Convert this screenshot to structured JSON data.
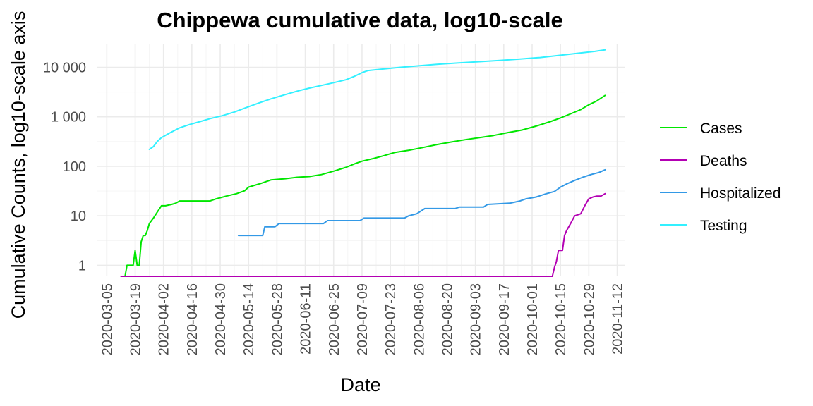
{
  "chart_data": {
    "type": "line",
    "title": "Chippewa cumulative data, log10-scale",
    "xlabel": "Date",
    "ylabel": "Cumulative Counts, log10-scale axis",
    "y_scale": "log10",
    "xlim": [
      "2020-02-29",
      "2020-11-16"
    ],
    "ylim": [
      0.6,
      30000
    ],
    "x_ticks": [
      "2020-03-05",
      "2020-03-19",
      "2020-04-02",
      "2020-04-16",
      "2020-04-30",
      "2020-05-14",
      "2020-05-28",
      "2020-06-11",
      "2020-06-25",
      "2020-07-09",
      "2020-07-23",
      "2020-08-06",
      "2020-08-20",
      "2020-09-03",
      "2020-09-17",
      "2020-10-01",
      "2020-10-15",
      "2020-10-29",
      "2020-11-12"
    ],
    "y_ticks": [
      {
        "value": 1,
        "label": "1"
      },
      {
        "value": 10,
        "label": "10"
      },
      {
        "value": 100,
        "label": "100"
      },
      {
        "value": 1000,
        "label": "1 000"
      },
      {
        "value": 10000,
        "label": "10 000"
      }
    ],
    "grid": true,
    "legend_position": "right",
    "series": [
      {
        "name": "Cases",
        "color": "#00e600",
        "points": [
          [
            "2020-03-14",
            0.6
          ],
          [
            "2020-03-15",
            1
          ],
          [
            "2020-03-17",
            1
          ],
          [
            "2020-03-18",
            1
          ],
          [
            "2020-03-19",
            2
          ],
          [
            "2020-03-20",
            1
          ],
          [
            "2020-03-21",
            1
          ],
          [
            "2020-03-22",
            3
          ],
          [
            "2020-03-23",
            4
          ],
          [
            "2020-03-24",
            4
          ],
          [
            "2020-03-25",
            5
          ],
          [
            "2020-03-26",
            7
          ],
          [
            "2020-03-28",
            9
          ],
          [
            "2020-03-30",
            12
          ],
          [
            "2020-04-01",
            16
          ],
          [
            "2020-04-03",
            16
          ],
          [
            "2020-04-06",
            17
          ],
          [
            "2020-04-08",
            18
          ],
          [
            "2020-04-10",
            20
          ],
          [
            "2020-04-16",
            20
          ],
          [
            "2020-04-20",
            20
          ],
          [
            "2020-04-25",
            20
          ],
          [
            "2020-04-28",
            22
          ],
          [
            "2020-05-03",
            25
          ],
          [
            "2020-05-08",
            28
          ],
          [
            "2020-05-12",
            32
          ],
          [
            "2020-05-14",
            38
          ],
          [
            "2020-05-20",
            45
          ],
          [
            "2020-05-25",
            53
          ],
          [
            "2020-06-01",
            56
          ],
          [
            "2020-06-07",
            60
          ],
          [
            "2020-06-13",
            62
          ],
          [
            "2020-06-19",
            68
          ],
          [
            "2020-06-25",
            80
          ],
          [
            "2020-07-01",
            95
          ],
          [
            "2020-07-06",
            115
          ],
          [
            "2020-07-09",
            127
          ],
          [
            "2020-07-15",
            145
          ],
          [
            "2020-07-20",
            165
          ],
          [
            "2020-07-25",
            190
          ],
          [
            "2020-08-01",
            210
          ],
          [
            "2020-08-08",
            240
          ],
          [
            "2020-08-15",
            275
          ],
          [
            "2020-08-22",
            310
          ],
          [
            "2020-08-29",
            345
          ],
          [
            "2020-09-05",
            380
          ],
          [
            "2020-09-12",
            420
          ],
          [
            "2020-09-19",
            480
          ],
          [
            "2020-09-26",
            540
          ],
          [
            "2020-10-03",
            650
          ],
          [
            "2020-10-10",
            800
          ],
          [
            "2020-10-15",
            950
          ],
          [
            "2020-10-20",
            1150
          ],
          [
            "2020-10-25",
            1400
          ],
          [
            "2020-10-29",
            1750
          ],
          [
            "2020-11-02",
            2100
          ],
          [
            "2020-11-06",
            2700
          ]
        ]
      },
      {
        "name": "Deaths",
        "color": "#b300b3",
        "points": [
          [
            "2020-03-12",
            0.6
          ],
          [
            "2020-10-11",
            0.6
          ],
          [
            "2020-10-12",
            0.9
          ],
          [
            "2020-10-13",
            1.2
          ],
          [
            "2020-10-14",
            2
          ],
          [
            "2020-10-16",
            2
          ],
          [
            "2020-10-17",
            4
          ],
          [
            "2020-10-18",
            5
          ],
          [
            "2020-10-20",
            7
          ],
          [
            "2020-10-22",
            10
          ],
          [
            "2020-10-25",
            11
          ],
          [
            "2020-10-27",
            16
          ],
          [
            "2020-10-29",
            22
          ],
          [
            "2020-10-31",
            24
          ],
          [
            "2020-11-02",
            25
          ],
          [
            "2020-11-04",
            25
          ],
          [
            "2020-11-06",
            28
          ]
        ]
      },
      {
        "name": "Hospitalized",
        "color": "#3399e6",
        "points": [
          [
            "2020-05-09",
            4
          ],
          [
            "2020-05-21",
            4
          ],
          [
            "2020-05-22",
            6
          ],
          [
            "2020-05-27",
            6
          ],
          [
            "2020-05-29",
            7
          ],
          [
            "2020-06-20",
            7
          ],
          [
            "2020-06-22",
            8
          ],
          [
            "2020-07-08",
            8
          ],
          [
            "2020-07-10",
            9
          ],
          [
            "2020-07-30",
            9
          ],
          [
            "2020-08-01",
            10
          ],
          [
            "2020-08-05",
            11
          ],
          [
            "2020-08-09",
            14
          ],
          [
            "2020-08-24",
            14
          ],
          [
            "2020-08-26",
            15
          ],
          [
            "2020-09-07",
            15
          ],
          [
            "2020-09-09",
            17
          ],
          [
            "2020-09-20",
            18
          ],
          [
            "2020-09-25",
            20
          ],
          [
            "2020-09-28",
            22
          ],
          [
            "2020-10-03",
            24
          ],
          [
            "2020-10-08",
            28
          ],
          [
            "2020-10-12",
            31
          ],
          [
            "2020-10-15",
            38
          ],
          [
            "2020-10-18",
            44
          ],
          [
            "2020-10-22",
            52
          ],
          [
            "2020-10-26",
            60
          ],
          [
            "2020-10-30",
            68
          ],
          [
            "2020-11-03",
            75
          ],
          [
            "2020-11-06",
            85
          ]
        ]
      },
      {
        "name": "Testing",
        "color": "#33f0ff",
        "points": [
          [
            "2020-03-26",
            220
          ],
          [
            "2020-03-28",
            250
          ],
          [
            "2020-03-30",
            320
          ],
          [
            "2020-04-01",
            380
          ],
          [
            "2020-04-05",
            470
          ],
          [
            "2020-04-10",
            600
          ],
          [
            "2020-04-15",
            700
          ],
          [
            "2020-04-20",
            800
          ],
          [
            "2020-04-25",
            920
          ],
          [
            "2020-05-01",
            1050
          ],
          [
            "2020-05-07",
            1250
          ],
          [
            "2020-05-13",
            1550
          ],
          [
            "2020-05-19",
            1900
          ],
          [
            "2020-05-25",
            2300
          ],
          [
            "2020-06-01",
            2800
          ],
          [
            "2020-06-07",
            3300
          ],
          [
            "2020-06-13",
            3800
          ],
          [
            "2020-06-19",
            4300
          ],
          [
            "2020-06-25",
            4900
          ],
          [
            "2020-07-01",
            5600
          ],
          [
            "2020-07-05",
            6500
          ],
          [
            "2020-07-09",
            7800
          ],
          [
            "2020-07-12",
            8600
          ],
          [
            "2020-07-20",
            9300
          ],
          [
            "2020-07-28",
            10000
          ],
          [
            "2020-08-06",
            10700
          ],
          [
            "2020-08-15",
            11500
          ],
          [
            "2020-08-25",
            12200
          ],
          [
            "2020-09-05",
            13000
          ],
          [
            "2020-09-15",
            13800
          ],
          [
            "2020-09-25",
            14700
          ],
          [
            "2020-10-05",
            15800
          ],
          [
            "2020-10-15",
            17500
          ],
          [
            "2020-10-25",
            19500
          ],
          [
            "2020-11-01",
            21000
          ],
          [
            "2020-11-06",
            22500
          ]
        ]
      }
    ]
  }
}
